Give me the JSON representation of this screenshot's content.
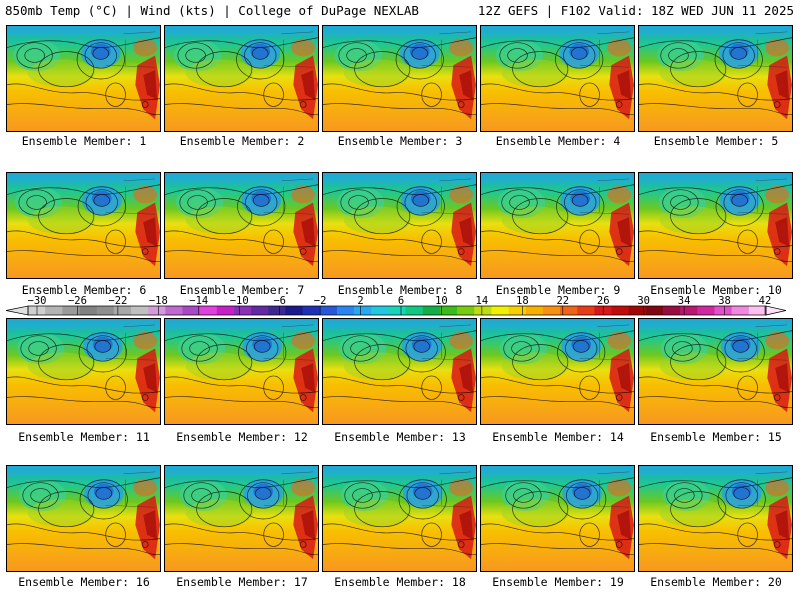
{
  "header": {
    "left": "850mb Temp (°C) | Wind (kts) | College of DuPage NEXLAB",
    "right": "12Z GEFS | F102 Valid: 18Z WED JUN 11 2025"
  },
  "panels": [
    {
      "label": "Ensemble Member: 1"
    },
    {
      "label": "Ensemble Member: 2"
    },
    {
      "label": "Ensemble Member: 3"
    },
    {
      "label": "Ensemble Member: 4"
    },
    {
      "label": "Ensemble Member: 5"
    },
    {
      "label": "Ensemble Member: 6"
    },
    {
      "label": "Ensemble Member: 7"
    },
    {
      "label": "Ensemble Member: 8"
    },
    {
      "label": "Ensemble Member: 9"
    },
    {
      "label": "Ensemble Member: 10"
    },
    {
      "label": "Ensemble Member: 11"
    },
    {
      "label": "Ensemble Member: 12"
    },
    {
      "label": "Ensemble Member: 13"
    },
    {
      "label": "Ensemble Member: 14"
    },
    {
      "label": "Ensemble Member: 15"
    },
    {
      "label": "Ensemble Member: 16"
    },
    {
      "label": "Ensemble Member: 17"
    },
    {
      "label": "Ensemble Member: 18"
    },
    {
      "label": "Ensemble Member: 19"
    },
    {
      "label": "Ensemble Member: 20"
    }
  ],
  "colorbar": {
    "tick_labels": [
      "−30",
      "−26",
      "−22",
      "−18",
      "−14",
      "−10",
      "−6",
      "−2",
      "2",
      "6",
      "10",
      "14",
      "18",
      "22",
      "26",
      "30",
      "34",
      "38",
      "42"
    ],
    "colors": [
      "#cfcfcf",
      "#b4b4b4",
      "#9a9a9a",
      "#828282",
      "#8f8f8f",
      "#a8a8a8",
      "#c0c0c0",
      "#d49adc",
      "#c06ad0",
      "#a848c4",
      "#e040e0",
      "#c820c8",
      "#8a30b8",
      "#6428a4",
      "#3c2890",
      "#1a1a8c",
      "#1e30b4",
      "#2858d8",
      "#2c84f0",
      "#28a8f0",
      "#20c8e0",
      "#18d4b8",
      "#10c880",
      "#10b048",
      "#3cbc1c",
      "#78cc10",
      "#c0dc10",
      "#f0f000",
      "#f8d000",
      "#f8b000",
      "#f89010",
      "#f06418",
      "#e83c18",
      "#d81818",
      "#c00c0c",
      "#a00808",
      "#800810",
      "#980c40",
      "#b81870",
      "#d028a0",
      "#e050c8",
      "#f088e0",
      "#ffc0f0"
    ]
  }
}
